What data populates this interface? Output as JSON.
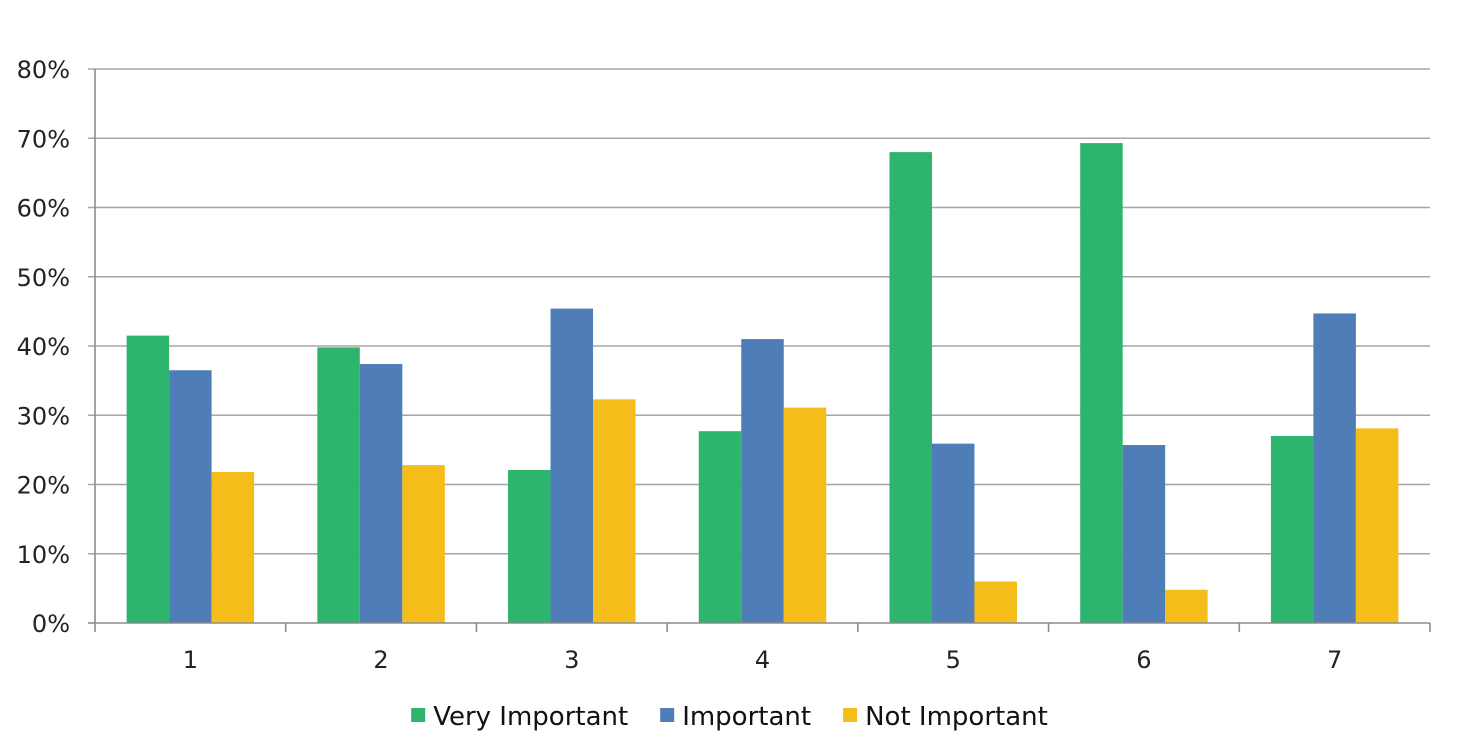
{
  "chart_data": {
    "type": "bar",
    "title": "",
    "xlabel": "",
    "ylabel": "",
    "categories": [
      "1",
      "2",
      "3",
      "4",
      "5",
      "6",
      "7"
    ],
    "ylim": [
      0,
      80
    ],
    "y_ticks": [
      0,
      10,
      20,
      30,
      40,
      50,
      60,
      70,
      80
    ],
    "y_tick_format": "%",
    "grid": true,
    "legend_position": "bottom",
    "series": [
      {
        "name": "Very Important",
        "color": "#2db56e",
        "values": [
          41.5,
          39.8,
          22.1,
          27.7,
          68.0,
          69.3,
          27.0
        ]
      },
      {
        "name": "Important",
        "color": "#4f7db8",
        "values": [
          36.5,
          37.4,
          45.4,
          41.0,
          25.9,
          25.7,
          44.7
        ]
      },
      {
        "name": "Not Important",
        "color": "#f5bd19",
        "values": [
          21.8,
          22.8,
          32.3,
          31.1,
          6.0,
          4.8,
          28.1
        ]
      }
    ]
  }
}
